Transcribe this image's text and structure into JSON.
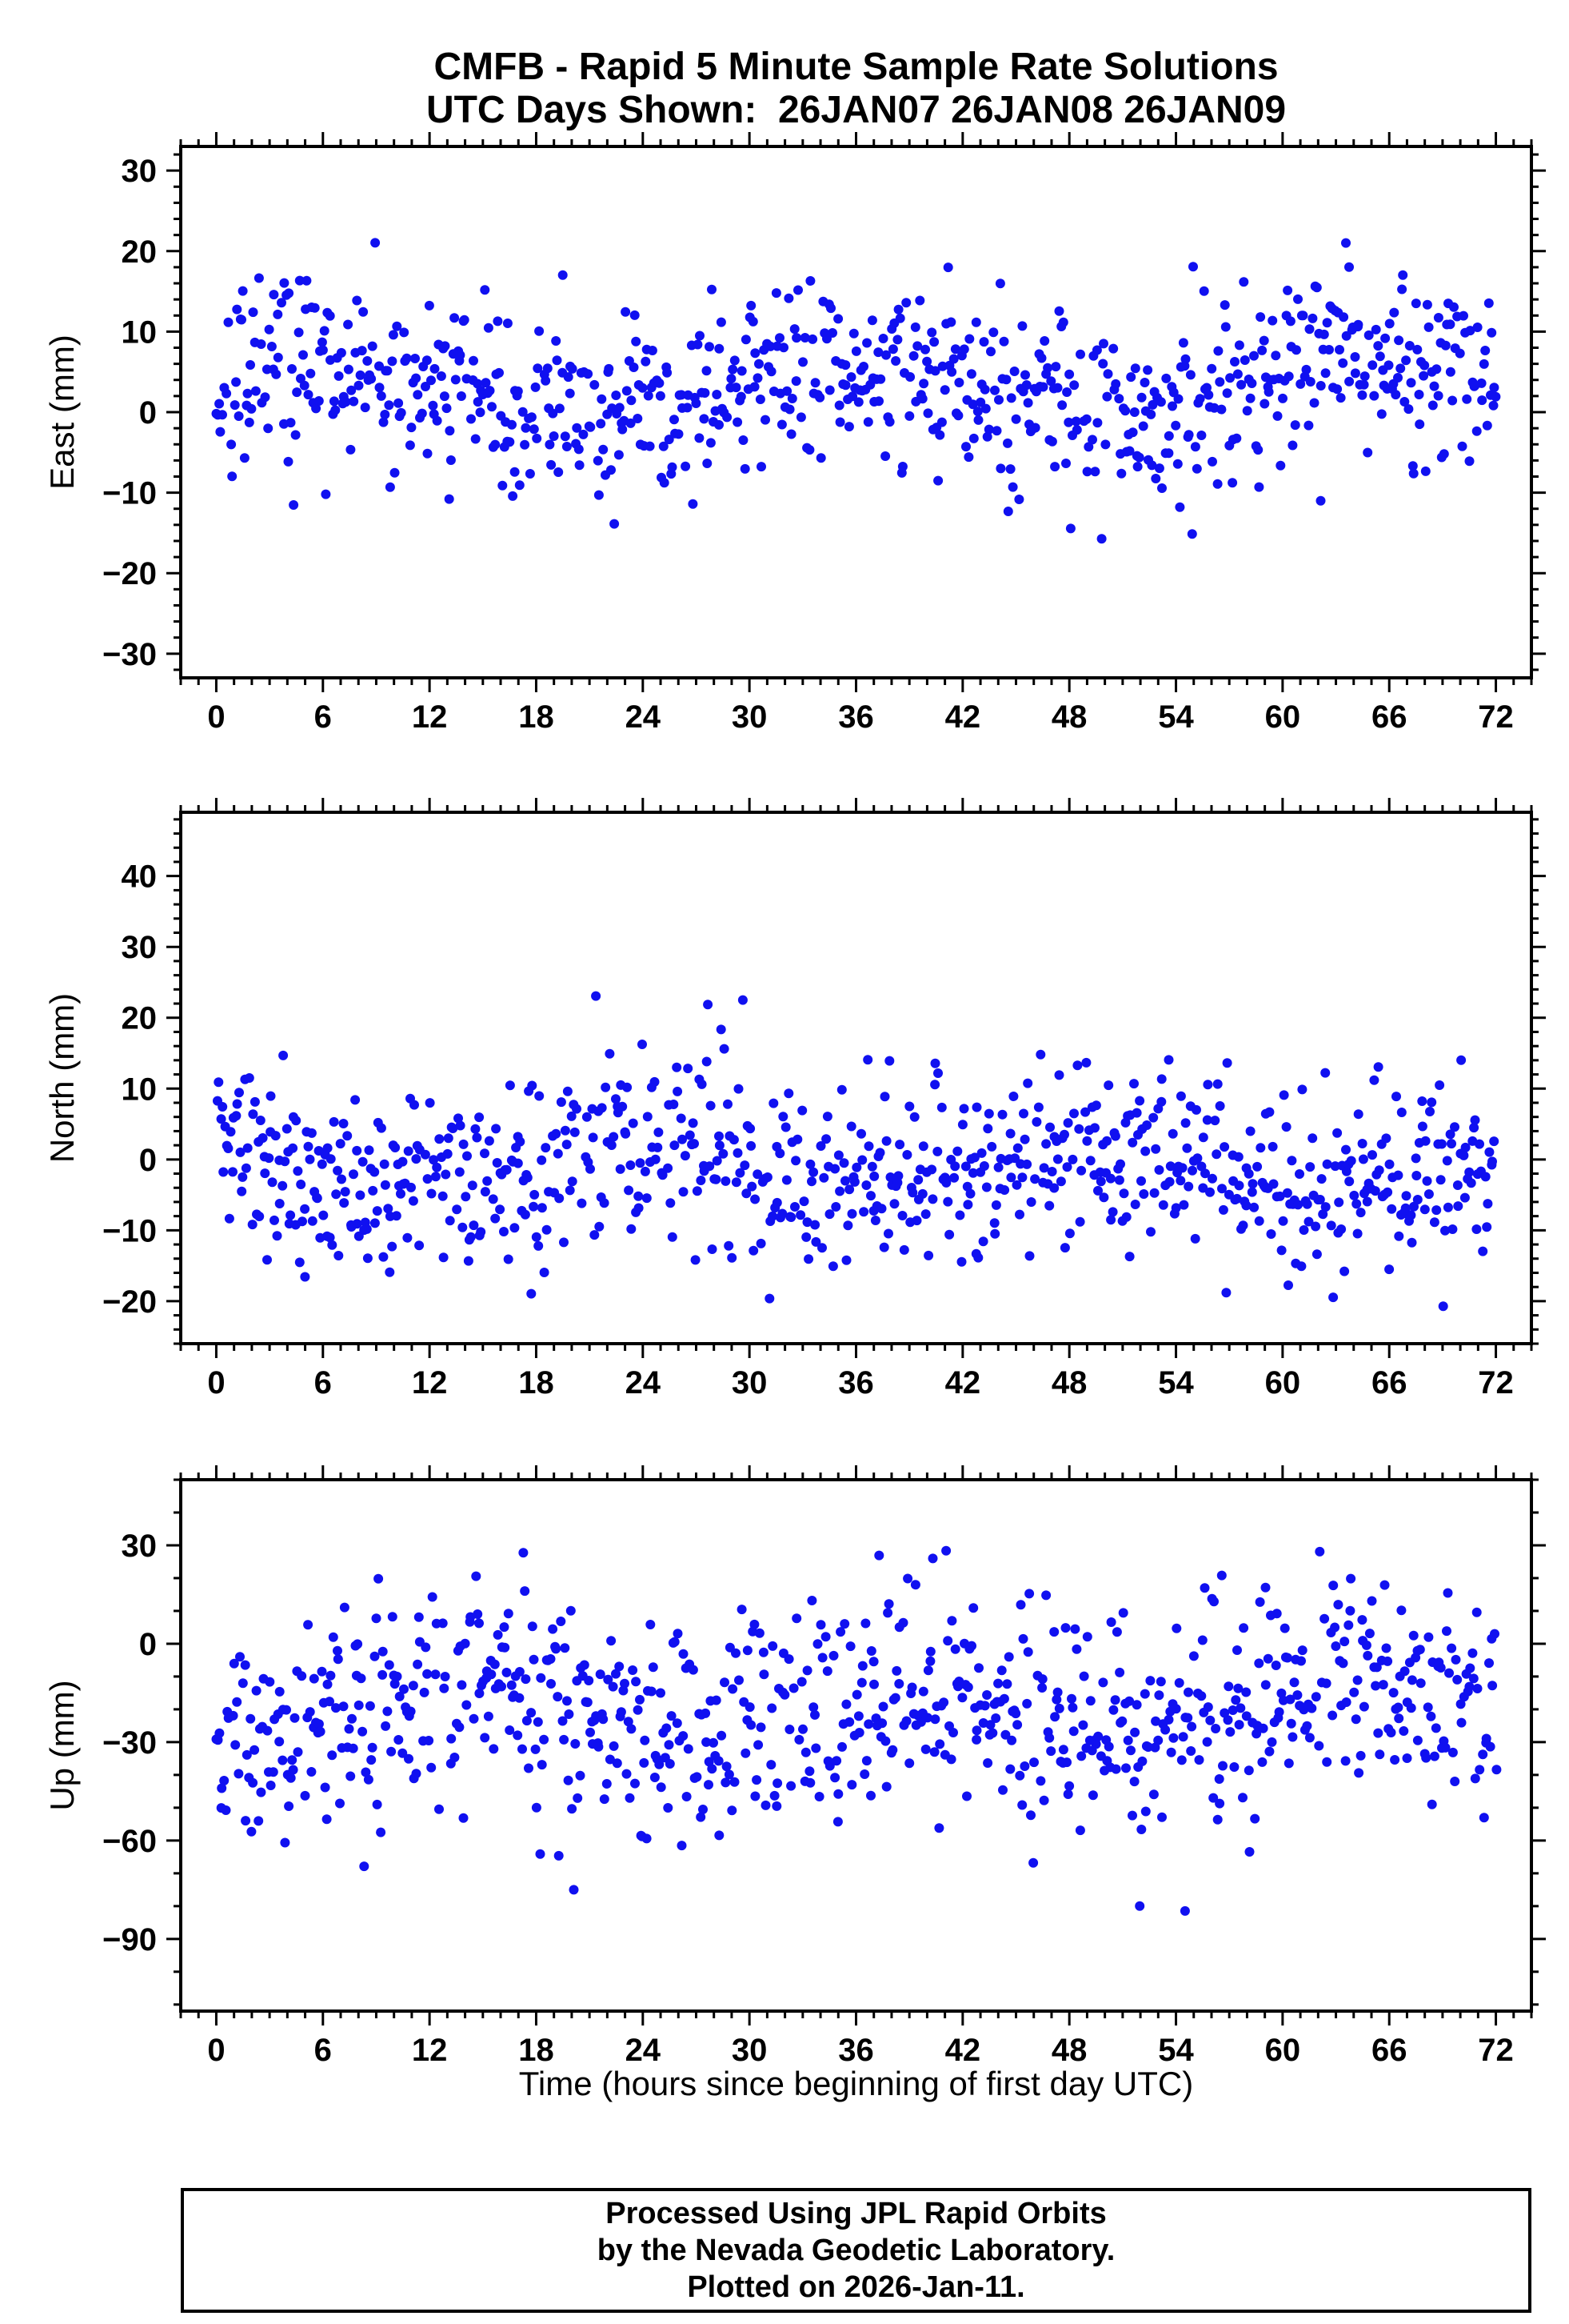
{
  "title": {
    "line1": "CMFB - Rapid 5 Minute Sample Rate Solutions",
    "line2": "UTC Days Shown:  26JAN07 26JAN08 26JAN09"
  },
  "footer": {
    "line1": "Processed Using JPL Rapid Orbits",
    "line2": "by the Nevada Geodetic Laboratory.",
    "line3": "Plotted on 2026-Jan-11."
  },
  "chart_data": {
    "type": "scatter",
    "title": "CMFB - Rapid 5 Minute Sample Rate Solutions",
    "subtitle": "UTC Days Shown: 26JAN07 26JAN08 26JAN09",
    "xlabel": "Time (hours since beginning of first day UTC)",
    "x_range": [
      -2,
      74
    ],
    "x_major_ticks": [
      0,
      6,
      12,
      18,
      24,
      30,
      36,
      42,
      48,
      54,
      60,
      66,
      72
    ],
    "x_minor_step": 1,
    "dot_color": "#1010f0",
    "frame_color": "#000000",
    "sample_interval_minutes": 5,
    "duration_hours": 72,
    "panels": [
      {
        "name": "East",
        "ylabel": "East (mm)",
        "y_range": [
          -33,
          33
        ],
        "y_major_ticks": [
          -30,
          -20,
          -10,
          0,
          10,
          20,
          30
        ],
        "y_minor_step": 2,
        "points_spec": {
          "seed": 11,
          "n": 860,
          "x_start": 0,
          "x_end": 72,
          "mean": 3.0,
          "std": 5.5,
          "wander_amp": 3.0,
          "wander_period": 30,
          "phase": 0.5,
          "gap_rate": 0.08,
          "outlier_rate": 0.03,
          "outlier_scale": 2.5
        }
      },
      {
        "name": "North",
        "ylabel": "North (mm)",
        "y_range": [
          -26,
          49
        ],
        "y_major_ticks": [
          -20,
          -10,
          0,
          10,
          20,
          30,
          40
        ],
        "y_minor_step": 2,
        "points_spec": {
          "seed": 23,
          "n": 860,
          "x_start": 0,
          "x_end": 72,
          "mean": -1.5,
          "std": 6.5,
          "wander_amp": 3.0,
          "wander_period": 26,
          "phase": 2.1,
          "gap_rate": 0.08,
          "outlier_rate": 0.03,
          "outlier_scale": 2.5
        }
      },
      {
        "name": "Up",
        "ylabel": "Up (mm)",
        "y_range": [
          -112,
          50
        ],
        "y_major_ticks": [
          -90,
          -60,
          -30,
          0,
          30
        ],
        "y_minor_step": 10,
        "points_spec": {
          "seed": 37,
          "n": 860,
          "x_start": 0,
          "x_end": 72,
          "mean": -20,
          "std": 17,
          "wander_amp": 8,
          "wander_period": 24,
          "phase": 4.0,
          "gap_rate": 0.08,
          "outlier_rate": 0.025,
          "outlier_scale": 2.2
        }
      }
    ]
  }
}
